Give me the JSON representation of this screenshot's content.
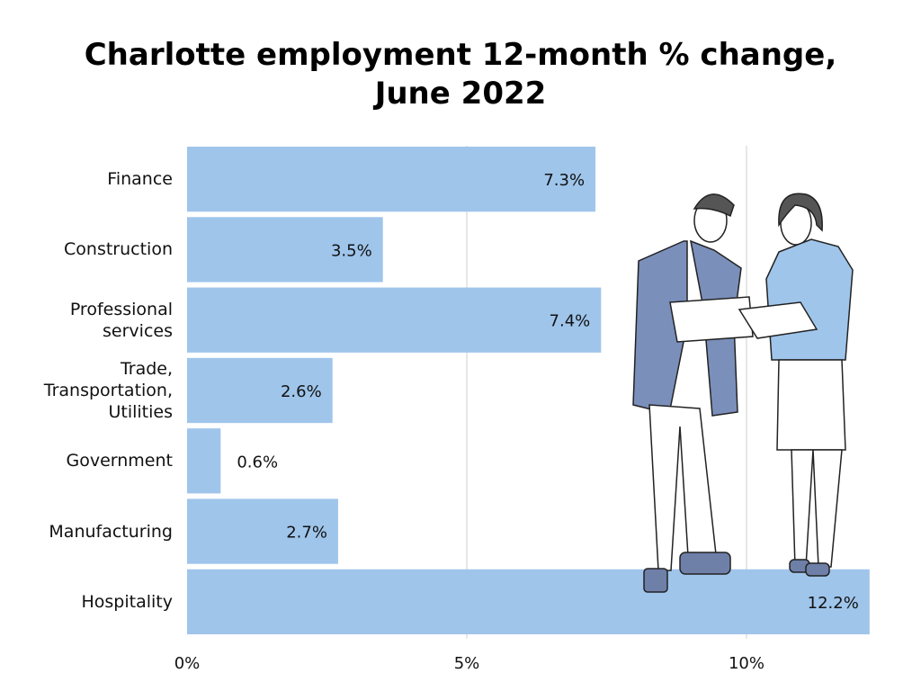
{
  "chart_data": {
    "type": "bar",
    "orientation": "horizontal",
    "title": "Charlotte employment 12-month % change,\nJune 2022",
    "categories": [
      "Finance",
      "Construction",
      "Professional\nservices",
      "Trade,\nTransportation,\nUtilities",
      "Government",
      "Manufacturing",
      "Hospitality"
    ],
    "values": [
      7.3,
      3.5,
      7.4,
      2.6,
      0.6,
      2.7,
      12.2
    ],
    "value_labels": [
      "7.3%",
      "3.5%",
      "7.4%",
      "2.6%",
      "0.6%",
      "2.7%",
      "12.2%"
    ],
    "color": "#9fc5eb",
    "xlim": [
      0,
      12.25
    ],
    "xticks": [
      {
        "value": 0,
        "label": "0%"
      },
      {
        "value": 5,
        "label": "5%"
      },
      {
        "value": 10,
        "label": "10%"
      }
    ],
    "grid": true
  }
}
